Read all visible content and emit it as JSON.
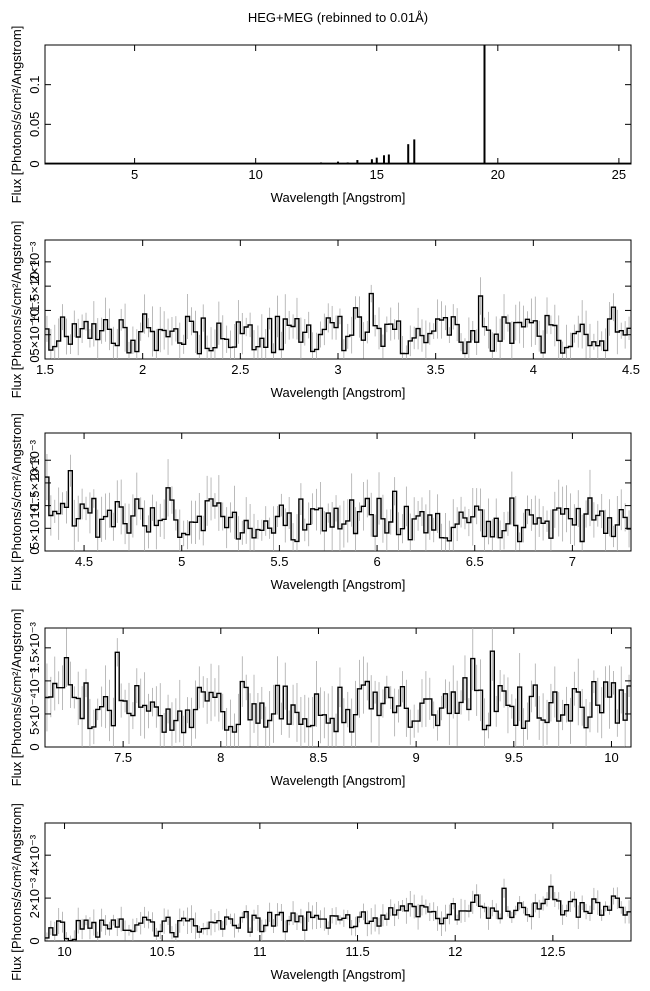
{
  "title": "HEG+MEG (rebinned to 0.01Å)",
  "chart_data": [
    {
      "type": "line",
      "xlabel": "Wavelength [Angstrom]",
      "ylabel": "Flux [Photons/s/cm²/Angstrom]",
      "xlim": [
        1.3,
        25.5
      ],
      "ylim": [
        0,
        0.15
      ],
      "xticks": [
        5,
        10,
        15,
        20,
        25
      ],
      "xtick_labels": [
        "5",
        "10",
        "15",
        "20",
        "25"
      ],
      "yticks": [
        0,
        0.05,
        0.1
      ],
      "ytick_labels": [
        "0",
        "0.05",
        "0.1"
      ],
      "lines": [
        {
          "x": 12.1,
          "y": 0.001
        },
        {
          "x": 12.7,
          "y": 0.002
        },
        {
          "x": 13.4,
          "y": 0.003
        },
        {
          "x": 13.8,
          "y": 0.002
        },
        {
          "x": 14.2,
          "y": 0.005
        },
        {
          "x": 14.8,
          "y": 0.006
        },
        {
          "x": 15.0,
          "y": 0.008
        },
        {
          "x": 15.3,
          "y": 0.011
        },
        {
          "x": 15.5,
          "y": 0.012
        },
        {
          "x": 16.3,
          "y": 0.025
        },
        {
          "x": 16.55,
          "y": 0.031
        },
        {
          "x": 19.45,
          "y": 0.15
        }
      ]
    },
    {
      "type": "line",
      "xlabel": "Wavelength [Angstrom]",
      "ylabel": "Flux [Photons/s/cm²/Angstrom]",
      "xlim": [
        1.5,
        4.5
      ],
      "ylim": [
        0,
        0.00245
      ],
      "xticks": [
        1.5,
        2,
        2.5,
        3,
        3.5,
        4,
        4.5
      ],
      "xtick_labels": [
        "1.5",
        "2",
        "2.5",
        "3",
        "3.5",
        "4",
        "4.5"
      ],
      "ytick_labels": [
        "0",
        "5×10⁻⁴",
        "10⁻³",
        "1.5×10⁻³",
        "2×10⁻³"
      ],
      "yticks": [
        0,
        0.0005,
        0.001,
        0.0015,
        0.002
      ],
      "mean": 0.0005,
      "spread": 0.0004,
      "seed": 11
    },
    {
      "type": "line",
      "xlabel": "Wavelength [Angstrom]",
      "ylabel": "Flux [Photons/s/cm²/Angstrom]",
      "xlim": [
        4.3,
        7.3
      ],
      "ylim": [
        0,
        0.0026
      ],
      "xticks": [
        4.5,
        5,
        5.5,
        6,
        6.5,
        7
      ],
      "xtick_labels": [
        "4.5",
        "5",
        "5.5",
        "6",
        "6.5",
        "7"
      ],
      "ytick_labels": [
        "0",
        "5×10⁻⁴",
        "10⁻³",
        "1.5×10⁻³",
        "2×10⁻³"
      ],
      "yticks": [
        0,
        0.0005,
        0.001,
        0.0015,
        0.002
      ],
      "mean": 0.0007,
      "spread": 0.0005,
      "seed": 23
    },
    {
      "type": "line",
      "xlabel": "Wavelength [Angstrom]",
      "ylabel": "Flux [Photons/s/cm²/Angstrom]",
      "xlim": [
        7.1,
        10.1
      ],
      "ylim": [
        0,
        0.0018
      ],
      "xticks": [
        7.5,
        8,
        8.5,
        9,
        9.5,
        10
      ],
      "xtick_labels": [
        "7.5",
        "8",
        "8.5",
        "9",
        "9.5",
        "10"
      ],
      "ytick_labels": [
        "0",
        "5×10⁻⁴",
        "10⁻³",
        "1.5×10⁻³"
      ],
      "yticks": [
        0,
        0.0005,
        0.001,
        0.0015
      ],
      "mean": 0.0006,
      "spread": 0.0004,
      "seed": 37
    },
    {
      "type": "line",
      "xlabel": "Wavelength [Angstrom]",
      "ylabel": "Flux [Photons/s/cm²/Angstrom]",
      "xlim": [
        9.9,
        12.9
      ],
      "ylim": [
        0,
        0.0055
      ],
      "xticks": [
        10,
        10.5,
        11,
        11.5,
        12,
        12.5
      ],
      "xtick_labels": [
        "10",
        "10.5",
        "11",
        "11.5",
        "12",
        "12.5"
      ],
      "ytick_labels": [
        "0",
        "2×10⁻³",
        "4×10⁻³"
      ],
      "yticks": [
        0,
        0.002,
        0.004
      ],
      "mean": 0.0008,
      "spread": 0.0005,
      "seed": 51,
      "ramp": true
    }
  ]
}
